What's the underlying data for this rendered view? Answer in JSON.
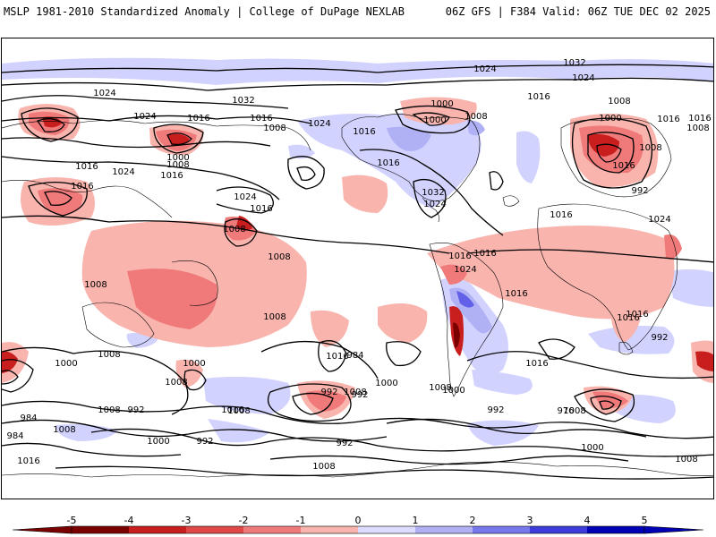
{
  "header": {
    "left": "MSLP 1981-2010 Standardized Anomaly | College of DuPage NEXLAB",
    "right": "06Z GFS | F384 Valid: 06Z TUE DEC 02 2025"
  },
  "colorbar": {
    "ticks": [
      "-5",
      "-4",
      "-3",
      "-2",
      "-1",
      "0",
      "1",
      "2",
      "3",
      "4",
      "5"
    ],
    "colors": [
      "#7a0000",
      "#c81e1e",
      "#e04848",
      "#f07a7a",
      "#f8b4ad",
      "#ffffff",
      "#dcdcff",
      "#b0b0f5",
      "#7878ee",
      "#3c3cdc",
      "#0000b4"
    ]
  },
  "map": {
    "isobar_labels": [
      "1032",
      "1024",
      "1024",
      "1032",
      "1016",
      "1024",
      "1016",
      "1008",
      "1016",
      "1000",
      "1008",
      "1000",
      "1008",
      "1016",
      "1024",
      "1024",
      "1016",
      "1016",
      "1016",
      "1024",
      "1016",
      "1032",
      "1024",
      "1000",
      "1008",
      "1016",
      "1016",
      "992",
      "1008",
      "1000",
      "1008",
      "1024",
      "1016",
      "1008",
      "1016",
      "1008",
      "1008",
      "1008",
      "1016",
      "1016",
      "1024",
      "1008",
      "1016",
      "1016",
      "1016",
      "1024",
      "1016",
      "1008",
      "1016",
      "1016",
      "1008",
      "1000",
      "992",
      "1008",
      "1016",
      "1000",
      "1008",
      "1008",
      "1008",
      "1000",
      "992",
      "984",
      "992",
      "976",
      "1000",
      "992",
      "992",
      "984",
      "984",
      "1008",
      "1000",
      "992",
      "1016",
      "1008",
      "992",
      "1000",
      "1008"
    ],
    "land_boundaries": "coastline-lines"
  }
}
